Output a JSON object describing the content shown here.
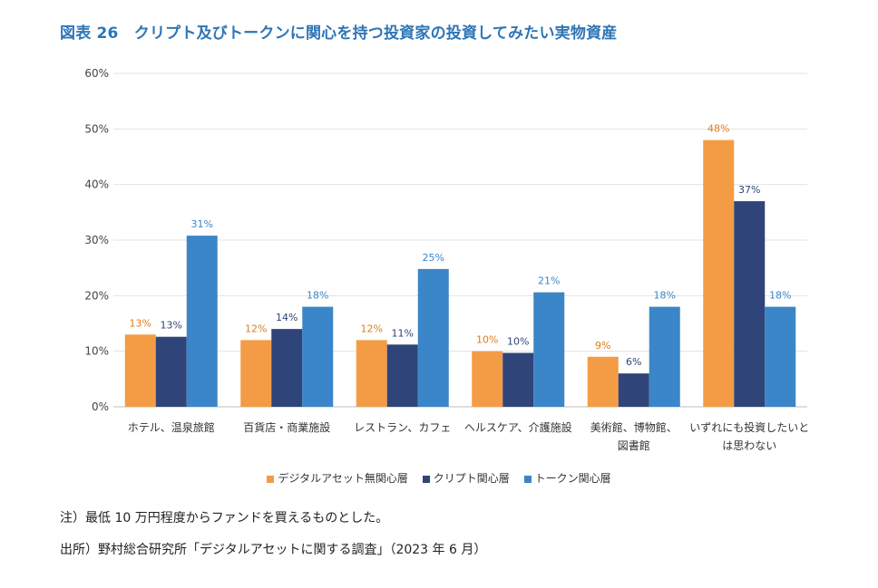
{
  "title": "図表 26　クリプト及びトークンに関心を持つ投資家の投資してみたい実物資産",
  "chart_data": {
    "type": "bar",
    "categories": [
      [
        "ホテル、温泉旅館"
      ],
      [
        "百貨店・商業施設"
      ],
      [
        "レストラン、カフェ"
      ],
      [
        "ヘルスケア、介護施設"
      ],
      [
        "美術館、博物館、",
        "図書館"
      ],
      [
        "いずれにも投資したいと",
        "は思わない"
      ]
    ],
    "series": [
      {
        "name": "デジタルアセット無関心層",
        "color": "#f39c45",
        "values": [
          13,
          12,
          12,
          10,
          9,
          48
        ],
        "labels": [
          "13%",
          "12%",
          "12%",
          "10%",
          "9%",
          "48%"
        ]
      },
      {
        "name": "クリプト関心層",
        "color": "#2f4479",
        "values": [
          12.6,
          14,
          11.2,
          9.7,
          6,
          37
        ],
        "labels": [
          "13%",
          "14%",
          "11%",
          "10%",
          "6%",
          "37%"
        ]
      },
      {
        "name": "トークン関心層",
        "color": "#3a86c8",
        "values": [
          30.8,
          18,
          24.8,
          20.6,
          18,
          18
        ],
        "labels": [
          "31%",
          "18%",
          "25%",
          "21%",
          "18%",
          "18%"
        ]
      }
    ],
    "yticks": [
      "0%",
      "10%",
      "20%",
      "30%",
      "40%",
      "50%",
      "60%"
    ],
    "ylim": [
      0,
      60
    ],
    "grid": true,
    "legend_position": "bottom"
  },
  "notes": [
    "注）最低 10 万円程度からファンドを買えるものとした。",
    "出所）野村総合研究所「デジタルアセットに関する調査」（2023 年 6 月）"
  ]
}
